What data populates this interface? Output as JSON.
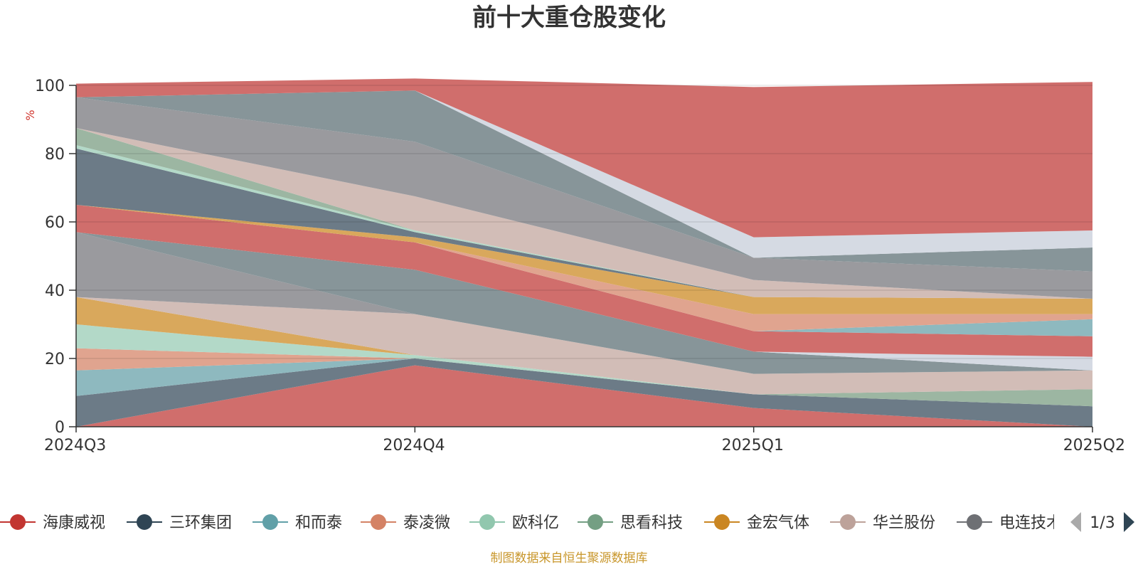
{
  "chart_data": {
    "type": "area",
    "stacked": true,
    "title": "前十大重仓股变化",
    "ylabel": "%",
    "ylim": [
      0,
      100
    ],
    "yticks": [
      "0",
      "20",
      "40",
      "60",
      "80",
      "100"
    ],
    "categories": [
      "2024Q3",
      "2024Q4",
      "2025Q1",
      "2025Q2"
    ],
    "series": [
      {
        "name": "海康威视",
        "color": "#d06e6c",
        "values": [
          0,
          18,
          5.5,
          0
        ]
      },
      {
        "name": "三环集团",
        "color": "#6c7b87",
        "values": [
          9,
          2,
          4,
          6
        ]
      },
      {
        "name": "和而泰",
        "color": "#8eb9bf",
        "values": [
          7.5,
          0,
          0,
          0
        ]
      },
      {
        "name": "泰凌微",
        "color": "#e0a48f",
        "values": [
          6.5,
          0,
          0,
          0
        ]
      },
      {
        "name": "欧科亿",
        "color": "#b3d9c8",
        "values": [
          7,
          1,
          0,
          0
        ]
      },
      {
        "name": "思看科技",
        "color": "#9cb6a2",
        "values": [
          0,
          0,
          0,
          5
        ]
      },
      {
        "name": "金宏气体",
        "color": "#d9a85c",
        "values": [
          8,
          0,
          0,
          0
        ]
      },
      {
        "name": "华兰股份",
        "color": "#d2bdb7",
        "values": [
          0,
          12,
          6,
          5.5
        ]
      },
      {
        "name": "电连技术",
        "color": "#9a9a9e",
        "values": [
          19,
          0,
          0,
          0
        ]
      },
      {
        "name": "",
        "color": "#879599",
        "values": [
          0,
          13,
          6.5,
          0
        ]
      },
      {
        "name": "",
        "color": "#d5dae3",
        "values": [
          0,
          0,
          0,
          4
        ]
      },
      {
        "name": "",
        "color": "#d06e6c",
        "values": [
          8,
          8,
          6,
          6
        ]
      },
      {
        "name": "",
        "color": "#8eb9bf",
        "values": [
          0,
          0,
          0,
          5
        ]
      },
      {
        "name": "",
        "color": "#e0a48f",
        "values": [
          0,
          0,
          5,
          1.5
        ]
      },
      {
        "name": "",
        "color": "#d9a85c",
        "values": [
          0,
          1.5,
          5,
          4.5
        ]
      },
      {
        "name": "",
        "color": "#6c7b87",
        "values": [
          16.5,
          1.5,
          0,
          0
        ]
      },
      {
        "name": "",
        "color": "#b3d9c8",
        "values": [
          1,
          0.5,
          0,
          0
        ]
      },
      {
        "name": "",
        "color": "#9cb6a2",
        "values": [
          5,
          0,
          0,
          0
        ]
      },
      {
        "name": "",
        "color": "#d2bdb7",
        "values": [
          0,
          10,
          5,
          0
        ]
      },
      {
        "name": "",
        "color": "#9a9a9e",
        "values": [
          9,
          16,
          6.5,
          8
        ]
      },
      {
        "name": "",
        "color": "#879599",
        "values": [
          0,
          15,
          0,
          7
        ]
      },
      {
        "name": "",
        "color": "#d5dae3",
        "values": [
          0,
          0,
          6,
          5
        ]
      },
      {
        "name": "",
        "color": "#d06e6c",
        "values": [
          4,
          3.5,
          44,
          43.5
        ]
      }
    ]
  },
  "legend": {
    "items": [
      {
        "label": "海康威视",
        "color": "#c23531"
      },
      {
        "label": "三环集团",
        "color": "#2f4554"
      },
      {
        "label": "和而泰",
        "color": "#61a0a8"
      },
      {
        "label": "泰凌微",
        "color": "#d48265"
      },
      {
        "label": "欧科亿",
        "color": "#91c7ae"
      },
      {
        "label": "思看科技",
        "color": "#749f83"
      },
      {
        "label": "金宏气体",
        "color": "#ca8622"
      },
      {
        "label": "华兰股份",
        "color": "#bda29a"
      },
      {
        "label": "电连技术",
        "color": "#6e7074"
      }
    ],
    "page": "1/3"
  },
  "source": "制图数据来自恒生聚源数据库"
}
